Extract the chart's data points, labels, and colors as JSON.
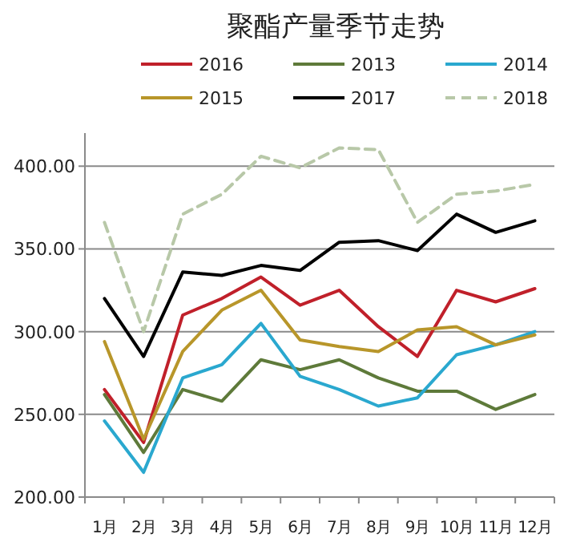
{
  "chart_data": {
    "type": "line",
    "title": "聚酯产量季节走势",
    "categories": [
      "1月",
      "2月",
      "3月",
      "4月",
      "5月",
      "6月",
      "7月",
      "8月",
      "9月",
      "10月",
      "11月",
      "12月"
    ],
    "series": [
      {
        "name": "2016",
        "color": "#c0202a",
        "values": [
          265,
          233,
          310,
          320,
          333,
          316,
          325,
          303,
          285,
          325,
          318,
          326
        ]
      },
      {
        "name": "2013",
        "color": "#5e7a3a",
        "values": [
          262,
          227,
          265,
          258,
          283,
          277,
          283,
          272,
          264,
          264,
          253,
          262
        ]
      },
      {
        "name": "2014",
        "color": "#2aa8cf",
        "values": [
          246,
          215,
          272,
          280,
          305,
          273,
          265,
          255,
          260,
          286,
          292,
          300
        ]
      },
      {
        "name": "2015",
        "color": "#b8962a",
        "values": [
          294,
          235,
          288,
          313,
          325,
          295,
          291,
          288,
          301,
          303,
          292,
          298
        ]
      },
      {
        "name": "2017",
        "color": "#000000",
        "values": [
          320,
          285,
          336,
          334,
          340,
          337,
          354,
          355,
          349,
          371,
          360,
          367
        ]
      },
      {
        "name": "2018",
        "color": "#b8c8a8",
        "line_style": "dashed",
        "values": [
          366,
          300,
          371,
          383,
          406,
          399,
          411,
          410,
          366,
          383,
          385,
          389
        ]
      }
    ],
    "ylim": [
      200,
      420
    ],
    "yticks": [
      {
        "value": 200,
        "label": "200.00"
      },
      {
        "value": 250,
        "label": "250.00"
      },
      {
        "value": 300,
        "label": "300.00"
      },
      {
        "value": 350,
        "label": "350.00"
      },
      {
        "value": 400,
        "label": "400.00"
      }
    ],
    "grid": "y",
    "legend": "top",
    "line_style": "solid",
    "marker": "none"
  }
}
